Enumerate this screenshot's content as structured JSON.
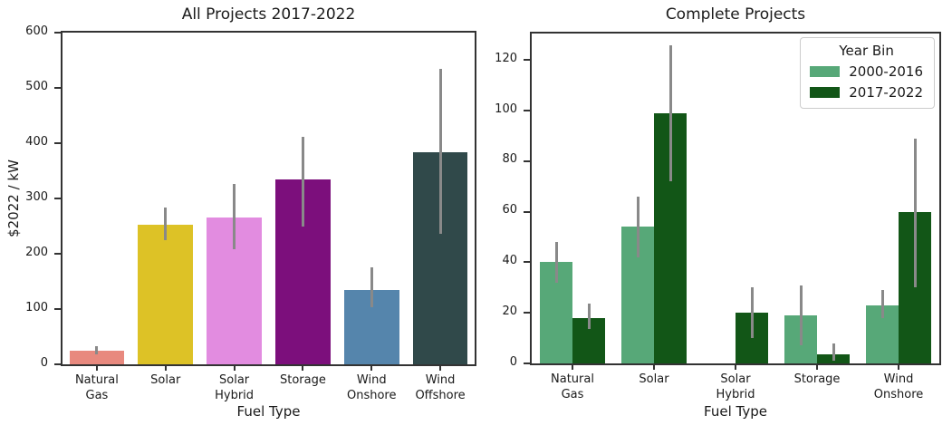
{
  "figure": {
    "background": "#ffffff",
    "text_color": "#1a1a1a",
    "spine_color": "#333333"
  },
  "chart_data": [
    {
      "type": "bar",
      "title": "All Projects 2017-2022",
      "xlabel": "Fuel Type",
      "ylabel": "$2022 / kW",
      "ylim": [
        0,
        600
      ],
      "yticks": [
        0,
        100,
        200,
        300,
        400,
        500,
        600
      ],
      "grid": false,
      "bar_width_frac": 0.8,
      "error_color": "#898989",
      "categories": [
        "Natural\nGas",
        "Solar",
        "Solar\nHybrid",
        "Storage",
        "Wind\nOnshore",
        "Wind\nOffshore"
      ],
      "series": [
        {
          "name": "All Projects 2017-2022",
          "values": [
            24,
            252,
            265,
            334,
            135,
            383
          ],
          "err_lo": [
            18,
            224,
            209,
            249,
            104,
            236
          ],
          "err_hi": [
            33,
            284,
            326,
            411,
            175,
            535
          ],
          "colors": [
            "#e8897e",
            "#ddc226",
            "#e28ce0",
            "#7c0f7c",
            "#5585ac",
            "#30494a"
          ]
        }
      ]
    },
    {
      "type": "bar",
      "title": "Complete Projects",
      "xlabel": "Fuel Type",
      "ylabel": "",
      "ylim": [
        0,
        130.5
      ],
      "yticks": [
        0,
        20,
        40,
        60,
        80,
        100,
        120
      ],
      "grid": false,
      "bar_width_frac": 0.8,
      "error_color": "#898989",
      "categories": [
        "Natural\nGas",
        "Solar",
        "Solar\nHybrid",
        "Storage",
        "Wind\nOnshore"
      ],
      "legend": {
        "title": "Year Bin",
        "position": "upper right",
        "entries": [
          {
            "label": "2000-2016",
            "color": "#57a878"
          },
          {
            "label": "2017-2022",
            "color": "#125617"
          }
        ]
      },
      "series": [
        {
          "name": "2000-2016",
          "color": "#57a878",
          "values": [
            40,
            54,
            0,
            19,
            23
          ],
          "err_lo": [
            32,
            42,
            null,
            7,
            18
          ],
          "err_hi": [
            48,
            66,
            null,
            31,
            29
          ]
        },
        {
          "name": "2017-2022",
          "color": "#125617",
          "values": [
            18,
            99,
            20,
            3.5,
            60
          ],
          "err_lo": [
            13.5,
            72,
            10,
            1,
            30
          ],
          "err_hi": [
            23.5,
            126,
            30,
            8,
            89
          ]
        }
      ]
    }
  ]
}
